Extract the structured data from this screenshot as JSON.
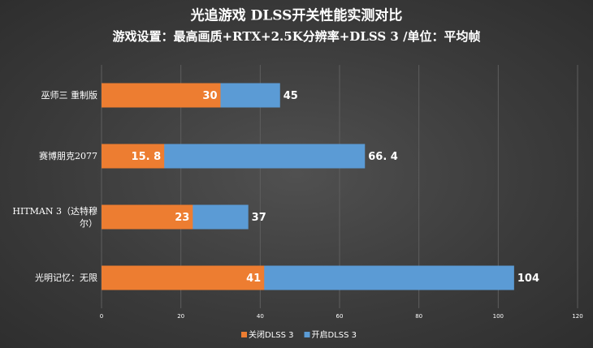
{
  "chart_data": {
    "type": "overlap-bar",
    "orientation": "horizontal",
    "title": "光追游戏 DLSS开关性能实测对比",
    "subtitle": "游戏设置：最高画质+RTX+2.5K分辨率+DLSS 3 /单位：平均帧",
    "categories": [
      "巫师三 重制版",
      "赛博朋克2077",
      "HITMAN 3（达特穆尔）",
      "光明记忆：无限"
    ],
    "series": [
      {
        "name": "关闭DLSS 3",
        "color": "#ed7d31",
        "values": [
          30,
          15.8,
          23,
          41
        ],
        "value_labels": [
          "30",
          "15. 8",
          "23",
          "41"
        ]
      },
      {
        "name": "开启DLSS 3",
        "color": "#5b9bd5",
        "values": [
          45,
          66.4,
          37,
          104
        ],
        "value_labels": [
          "45",
          "66. 4",
          "37",
          "104"
        ]
      }
    ],
    "xlim": [
      0,
      120
    ],
    "xticks": [
      0,
      20,
      40,
      60,
      80,
      100,
      120
    ],
    "grid": true,
    "legend": "bottom"
  }
}
